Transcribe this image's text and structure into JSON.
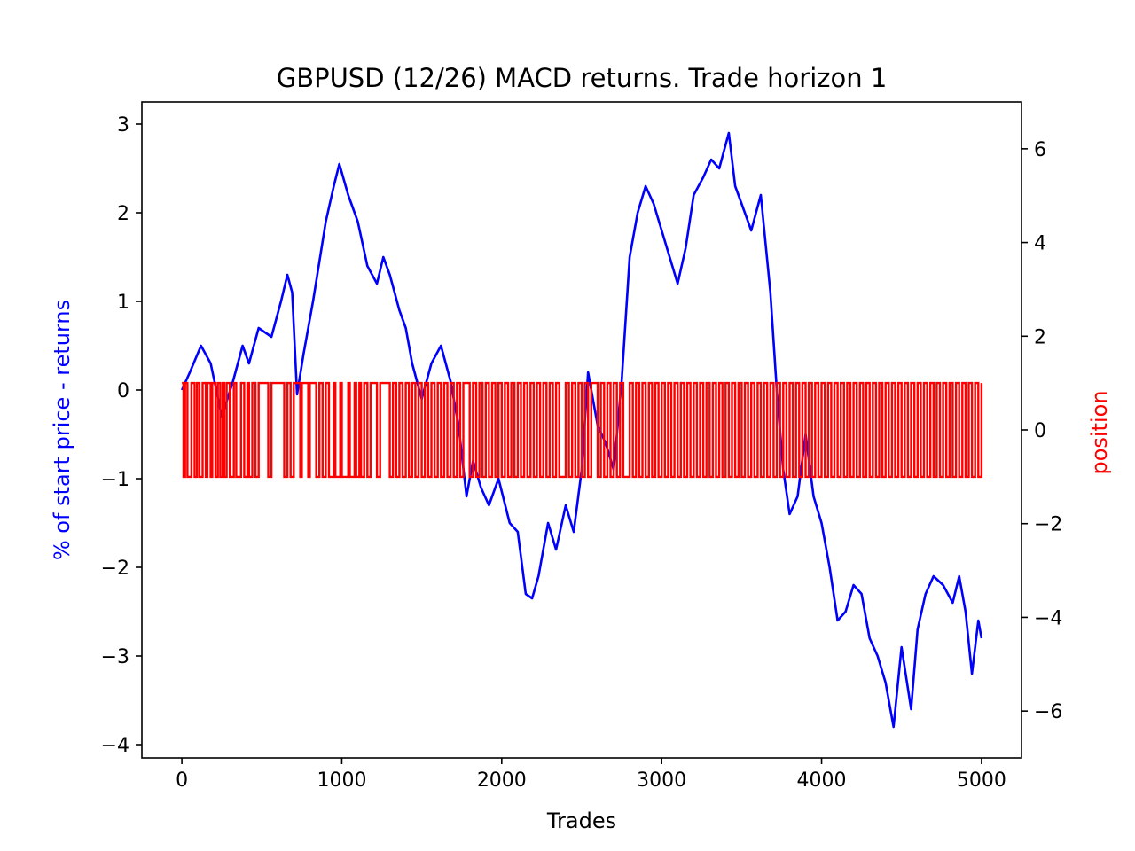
{
  "chart_data": {
    "type": "line",
    "title": "GBPUSD (12/26) MACD returns. Trade horizon 1",
    "xlabel": "Trades",
    "ylabel_left": "% of start price - returns",
    "ylabel_right": "position",
    "xlim": [
      -250,
      5250
    ],
    "ylim_left": [
      -4.15,
      3.25
    ],
    "ylim_right": [
      -7,
      7
    ],
    "xticks": [
      0,
      1000,
      2000,
      3000,
      4000,
      5000
    ],
    "yticks_left": [
      -4,
      -3,
      -2,
      -1,
      0,
      1,
      2,
      3
    ],
    "yticks_right": [
      -6,
      -4,
      -2,
      0,
      2,
      4,
      6
    ],
    "grid": false,
    "colors": {
      "returns": "#0000ff",
      "position": "#ff0000"
    },
    "series": [
      {
        "axis": "left",
        "x": [
          0,
          50,
          120,
          180,
          250,
          320,
          380,
          420,
          480,
          560,
          620,
          660,
          690,
          720,
          760,
          820,
          900,
          950,
          985,
          1040,
          1100,
          1160,
          1220,
          1260,
          1300,
          1360,
          1400,
          1440,
          1500,
          1560,
          1620,
          1680,
          1730,
          1780,
          1820,
          1870,
          1920,
          1980,
          2050,
          2100,
          2150,
          2190,
          2230,
          2290,
          2340,
          2400,
          2450,
          2500,
          2540,
          2600,
          2650,
          2700,
          2750,
          2800,
          2850,
          2900,
          2950,
          3000,
          3050,
          3100,
          3150,
          3200,
          3260,
          3310,
          3360,
          3420,
          3460,
          3500,
          3560,
          3620,
          3680,
          3720,
          3760,
          3800,
          3850,
          3900,
          3950,
          4000,
          4050,
          4100,
          4150,
          4200,
          4250,
          4300,
          4350,
          4400,
          4450,
          4500,
          4560,
          4600,
          4650,
          4700,
          4760,
          4820,
          4860,
          4900,
          4940,
          4980,
          5000
        ],
        "values": [
          0.0,
          0.2,
          0.5,
          0.3,
          -0.3,
          0.1,
          0.5,
          0.3,
          0.7,
          0.6,
          1.0,
          1.3,
          1.1,
          -0.05,
          0.4,
          1.0,
          1.9,
          2.3,
          2.55,
          2.2,
          1.9,
          1.4,
          1.2,
          1.5,
          1.3,
          0.9,
          0.7,
          0.3,
          -0.1,
          0.3,
          0.5,
          0.1,
          -0.4,
          -1.2,
          -0.8,
          -1.1,
          -1.3,
          -1.0,
          -1.5,
          -1.6,
          -2.3,
          -2.35,
          -2.1,
          -1.5,
          -1.8,
          -1.3,
          -1.6,
          -0.9,
          0.2,
          -0.4,
          -0.6,
          -0.9,
          0.1,
          1.5,
          2.0,
          2.3,
          2.1,
          1.8,
          1.5,
          1.2,
          1.6,
          2.2,
          2.4,
          2.6,
          2.5,
          2.9,
          2.3,
          2.1,
          1.8,
          2.2,
          1.1,
          0.0,
          -0.9,
          -1.4,
          -1.2,
          -0.5,
          -1.2,
          -1.5,
          -2.0,
          -2.6,
          -2.5,
          -2.2,
          -2.3,
          -2.8,
          -3.0,
          -3.3,
          -3.8,
          -2.9,
          -3.6,
          -2.7,
          -2.3,
          -2.1,
          -2.2,
          -2.4,
          -2.1,
          -2.5,
          -3.2,
          -2.6,
          -2.8
        ]
      },
      {
        "axis": "right",
        "x": [
          0,
          10,
          20,
          35,
          60,
          80,
          95,
          110,
          130,
          150,
          160,
          180,
          190,
          210,
          225,
          240,
          255,
          265,
          280,
          300,
          325,
          340,
          370,
          390,
          410,
          420,
          440,
          460,
          480,
          540,
          560,
          640,
          660,
          680,
          700,
          740,
          750,
          790,
          800,
          840,
          860,
          880,
          900,
          920,
          950,
          960,
          990,
          1000,
          1040,
          1050,
          1080,
          1090,
          1110,
          1120,
          1140,
          1160,
          1180,
          1220,
          1240,
          1300,
          1320,
          1340,
          1360,
          1380,
          1400,
          1420,
          1440,
          1460,
          1480,
          1500,
          1520,
          1540,
          1560,
          1580,
          1600,
          1620,
          1640,
          1660,
          1680,
          1700,
          1720,
          1740,
          1760,
          1800,
          1820,
          1840,
          1860,
          1880,
          1900,
          1920,
          1940,
          1960,
          1980,
          2000,
          2020,
          2040,
          2060,
          2080,
          2100,
          2120,
          2140,
          2160,
          2180,
          2200,
          2220,
          2240,
          2260,
          2280,
          2300,
          2320,
          2340,
          2360,
          2400,
          2420,
          2440,
          2460,
          2480,
          2500,
          2520,
          2540,
          2560,
          2600,
          2620,
          2640,
          2660,
          2680,
          2700,
          2720,
          2740,
          2760,
          2800,
          2820,
          2840,
          2860,
          2880,
          2900,
          2920,
          2940,
          2960,
          2980,
          3000,
          3020,
          3040,
          3060,
          3080,
          3100,
          3120,
          3140,
          3160,
          3180,
          3200,
          3220,
          3240,
          3260,
          3280,
          3300,
          3320,
          3340,
          3360,
          3380,
          3400,
          3420,
          3440,
          3460,
          3480,
          3500,
          3520,
          3540,
          3560,
          3580,
          3600,
          3620,
          3640,
          3660,
          3680,
          3700,
          3720,
          3740,
          3760,
          3780,
          3800,
          3820,
          3840,
          3860,
          3880,
          3900,
          3920,
          3940,
          3960,
          3980,
          4000,
          4020,
          4040,
          4060,
          4080,
          4100,
          4120,
          4140,
          4160,
          4180,
          4200,
          4220,
          4240,
          4260,
          4280,
          4300,
          4320,
          4340,
          4360,
          4380,
          4400,
          4420,
          4440,
          4460,
          4480,
          4500,
          4520,
          4540,
          4560,
          4580,
          4600,
          4620,
          4640,
          4660,
          4680,
          4700,
          4720,
          4740,
          4760,
          4780,
          4800,
          4820,
          4840,
          4860,
          4880,
          4900,
          4920,
          4940,
          4960,
          4980,
          5000
        ],
        "values": [
          1,
          -1,
          1,
          -1,
          1,
          -1,
          1,
          -1,
          1,
          -1,
          1,
          -1,
          1,
          -1,
          1,
          -1,
          1,
          -1,
          1,
          -1,
          1,
          -1,
          1,
          -1,
          1,
          -1,
          1,
          -1,
          1,
          -1,
          1,
          -1,
          1,
          -1,
          1,
          -1,
          1,
          -1,
          1,
          -1,
          1,
          -1,
          1,
          -1,
          1,
          -1,
          1,
          -1,
          1,
          -1,
          1,
          -1,
          1,
          -1,
          1,
          -1,
          1,
          -1,
          1,
          -1,
          1,
          -1,
          1,
          -1,
          1,
          -1,
          1,
          -1,
          1,
          -1,
          1,
          -1,
          1,
          -1,
          1,
          -1,
          1,
          -1,
          1,
          -1,
          1,
          -1,
          1,
          -1,
          1,
          -1,
          1,
          -1,
          1,
          -1,
          1,
          -1,
          1,
          -1,
          1,
          -1,
          1,
          -1,
          1,
          -1,
          1,
          -1,
          1,
          -1,
          1,
          -1,
          1,
          -1,
          1,
          -1,
          1,
          -1,
          1,
          -1,
          1,
          -1,
          1,
          -1,
          1,
          -1,
          1,
          -1,
          1,
          -1,
          1,
          -1,
          1,
          -1,
          1,
          -1,
          1,
          -1,
          1,
          -1,
          1,
          -1,
          1,
          -1,
          1,
          -1,
          1,
          -1,
          1,
          -1,
          1,
          -1,
          1,
          -1,
          1,
          -1,
          1,
          -1,
          1,
          -1,
          1,
          -1,
          1,
          -1,
          1,
          -1,
          1,
          -1,
          1,
          -1,
          1,
          -1,
          1,
          -1,
          1,
          -1,
          1,
          -1,
          1,
          -1,
          1,
          -1,
          1,
          -1,
          1,
          -1,
          1,
          -1,
          1,
          -1,
          1,
          -1,
          1,
          -1,
          1,
          -1,
          1,
          -1,
          1,
          -1,
          1,
          -1,
          1,
          -1,
          1,
          -1,
          1,
          -1,
          1,
          -1,
          1,
          -1,
          1,
          -1,
          1,
          -1,
          1,
          -1,
          1,
          -1,
          1,
          -1,
          1,
          -1,
          1,
          -1,
          1,
          -1,
          1,
          -1,
          1,
          -1,
          1,
          -1,
          1,
          -1,
          1,
          -1,
          1,
          -1,
          1,
          -1,
          1,
          -1,
          1,
          -1,
          1
        ]
      }
    ]
  }
}
